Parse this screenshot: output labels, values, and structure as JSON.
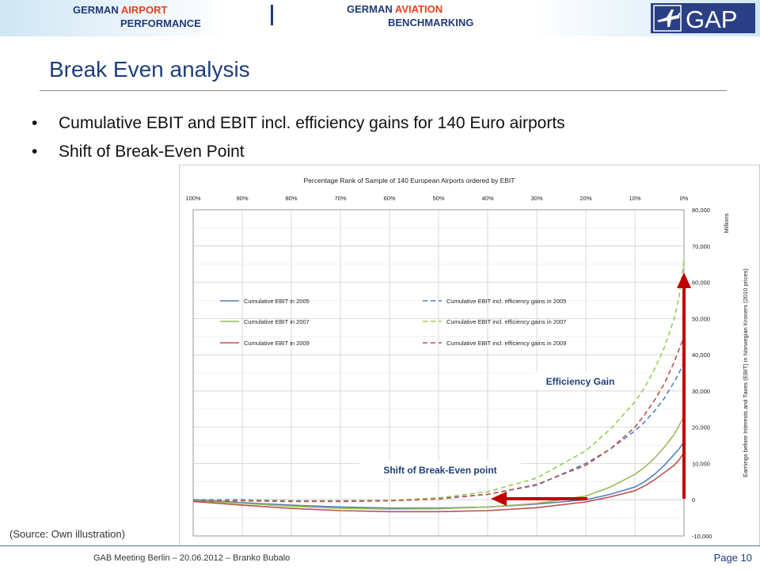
{
  "header": {
    "left_prefix": "GERMAN",
    "left_highlight": "AIRPORT",
    "left_line2": "PERFORMANCE",
    "right_prefix": "GERMAN",
    "right_highlight": "AVIATION",
    "right_line2": "BENCHMARKING",
    "logo_text": "GAP",
    "colors": {
      "navy": "#1f3a78",
      "accent": "#e8401c"
    }
  },
  "title": "Break Even analysis",
  "bullets": [
    "Cumulative EBIT and EBIT incl. efficiency gains for 140 Euro airports",
    "Shift of Break-Even Point"
  ],
  "source": "(Source: Own illustration)",
  "footer": {
    "text": "GAB Meeting Berlin – 20.06.2012 – Branko Bubalo",
    "page": "Page 10"
  },
  "chart_data": {
    "type": "line",
    "title": "Percentage Rank of Sample of 140 European Airports ordered by EBIT",
    "xlabel": "",
    "ylabel": "Earnings before Interests and Taxes (EBIT) in Norwegian Kroners (2010 prices)",
    "y_unit": "Millions",
    "x_ticks": [
      "100%",
      "90%",
      "80%",
      "70%",
      "60%",
      "50%",
      "40%",
      "30%",
      "20%",
      "10%",
      "0%"
    ],
    "y_ticks": [
      "80,000",
      "70,000",
      "60,000",
      "50,000",
      "40,000",
      "30,000",
      "20,000",
      "10,000",
      "0",
      "-10,000"
    ],
    "xlim": [
      100,
      0
    ],
    "ylim": [
      -10000,
      80000
    ],
    "x": [
      100,
      90,
      80,
      70,
      60,
      50,
      40,
      30,
      20,
      15,
      10,
      8,
      6,
      4,
      2,
      1,
      0
    ],
    "series": [
      {
        "name": "Cumulative EBIT in 2005",
        "color": "#4f81bd",
        "dash": false,
        "values": [
          0,
          -800,
          -1500,
          -2000,
          -2300,
          -2300,
          -2000,
          -1200,
          0,
          1500,
          3500,
          5000,
          7000,
          9500,
          12500,
          14000,
          16000
        ]
      },
      {
        "name": "Cumulative EBIT incl. efficiency gains in 2005",
        "color": "#4f81bd",
        "dash": true,
        "values": [
          0,
          0,
          -300,
          -300,
          -200,
          300,
          1500,
          4000,
          10000,
          14000,
          19000,
          21500,
          24500,
          28000,
          32500,
          35000,
          38000
        ]
      },
      {
        "name": "Cumulative EBIT in 2007",
        "color": "#9bbb59",
        "dash": false,
        "values": [
          -300,
          -1000,
          -1800,
          -2400,
          -2600,
          -2500,
          -2000,
          -1000,
          1000,
          3500,
          7000,
          9000,
          11500,
          14500,
          18000,
          20500,
          23000
        ]
      },
      {
        "name": "Cumulative EBIT incl. efficiency gains in 2007",
        "color": "#92d050",
        "dash": true,
        "values": [
          -300,
          -200,
          -400,
          -400,
          -200,
          500,
          2200,
          6000,
          13500,
          19500,
          27000,
          31000,
          36000,
          42000,
          50000,
          56000,
          66000
        ]
      },
      {
        "name": "Cumulative EBIT in 2009",
        "color": "#c0504d",
        "dash": false,
        "values": [
          -500,
          -1500,
          -2400,
          -3000,
          -3300,
          -3300,
          -3000,
          -2200,
          -600,
          800,
          2500,
          3800,
          5500,
          7500,
          9500,
          11000,
          13000
        ]
      },
      {
        "name": "Cumulative EBIT incl. efficiency gains in 2009",
        "color": "#c0504d",
        "dash": true,
        "values": [
          -400,
          -300,
          -500,
          -500,
          -300,
          200,
          1500,
          4200,
          9500,
          14000,
          20000,
          23500,
          27500,
          32000,
          38000,
          41500,
          45000
        ]
      }
    ],
    "annotations": [
      "Efficiency Gain",
      "Shift of Break-Even point"
    ],
    "legend": "inside-left",
    "grid": true
  }
}
